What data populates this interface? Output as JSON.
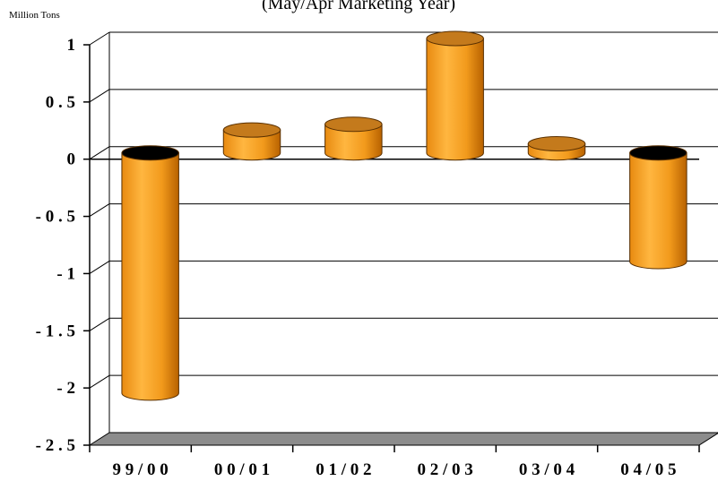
{
  "chart_data": {
    "type": "bar",
    "subtitle": "(May/Apr Marketing Year)",
    "unit_label": "Million Tons",
    "categories": [
      "9 9 / 0 0",
      "0 0 / 0 1",
      "0 1 / 0 2",
      "0 2 / 0 3",
      "0 3 / 0 4",
      "0 4 / 0 5"
    ],
    "values": [
      -2.1,
      0.2,
      0.25,
      1.0,
      0.08,
      -0.95
    ],
    "y_ticks": [
      {
        "value": 1,
        "label": "1"
      },
      {
        "value": 0.5,
        "label": "0 . 5"
      },
      {
        "value": 0,
        "label": "0"
      },
      {
        "value": -0.5,
        "label": "- 0 . 5"
      },
      {
        "value": -1,
        "label": "- 1"
      },
      {
        "value": -1.5,
        "label": "- 1 . 5"
      },
      {
        "value": -2,
        "label": "- 2"
      },
      {
        "value": -2.5,
        "label": "- 2 . 5"
      }
    ],
    "ylim": [
      -2.5,
      1
    ],
    "grid": true,
    "style": "3d-cylinder",
    "colors": {
      "bar_front": "#f7a020",
      "bar_highlight": "#ffc25a",
      "bar_shade": "#c06a00",
      "bar_top_positive": "#c47a1c",
      "bar_top_negative": "#000000",
      "floor": "#8c8c8c",
      "grid": "#000000"
    }
  }
}
